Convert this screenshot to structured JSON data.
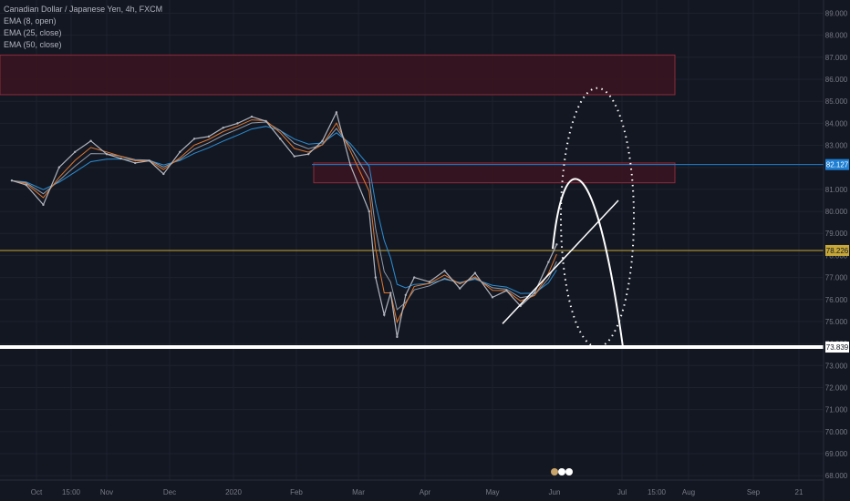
{
  "legend": {
    "symbol": "Canadian Dollar / Japanese Yen, 4h, FXCM",
    "indicators": [
      "EMA (8, open)",
      "EMA (25, close)",
      "EMA (50, close)"
    ]
  },
  "colors": {
    "background": "#131722",
    "price": "#b2b5be",
    "ema8": "#e0772d",
    "ema25": "#8f9aa8",
    "ema50": "#2a8fd6",
    "zone_fill": "#3a1420",
    "zone_border": "#8c2b3a",
    "current_line": "#1e7fd4",
    "hline_yellow": "#c6a737",
    "drawing": "#ffffff",
    "axis_text": "#787b86",
    "grid": "#1e222d"
  },
  "chart_data": {
    "type": "line",
    "title": "Canadian Dollar / Japanese Yen, 4h, FXCM",
    "xlabel": "",
    "ylabel": "",
    "x_ticks": [
      "Oct",
      "15:00",
      "Nov",
      "Dec",
      "2020",
      "Feb",
      "Mar",
      "Apr",
      "May",
      "Jun",
      "Jul",
      "15:00",
      "Aug",
      "Sep",
      "21"
    ],
    "y_ticks": [
      "89.000",
      "88.000",
      "87.000",
      "86.000",
      "85.000",
      "84.000",
      "83.000",
      "82.000",
      "81.000",
      "80.000",
      "79.000",
      "78.000",
      "77.000",
      "76.000",
      "75.000",
      "74.000",
      "73.000",
      "72.000",
      "71.000",
      "70.000",
      "69.000",
      "68.000"
    ],
    "ylim": [
      67.8,
      89.6
    ],
    "series": [
      {
        "name": "Canadian Dollar / Japanese Yen",
        "x": [
          "Sep 20",
          "Sep 27",
          "Oct 4",
          "Oct 11",
          "Oct 18",
          "Oct 25",
          "Nov 1",
          "Nov 8",
          "Nov 15",
          "Nov 22",
          "Nov 29",
          "Dec 6",
          "Dec 13",
          "Dec 20",
          "Dec 27",
          "Jan 3",
          "Jan 10",
          "Jan 17",
          "Jan 24",
          "Jan 31",
          "Feb 7",
          "Feb 14",
          "Feb 21",
          "Feb 28",
          "Mar 6",
          "Mar 9",
          "Mar 13",
          "Mar 16",
          "Mar 19",
          "Mar 23",
          "Mar 27",
          "Apr 3",
          "Apr 10",
          "Apr 17",
          "Apr 24",
          "May 1",
          "May 8",
          "May 15",
          "May 22",
          "May 29",
          "Jun 2"
        ],
        "values": [
          81.4,
          81.2,
          80.3,
          82.0,
          82.7,
          83.2,
          82.6,
          82.4,
          82.2,
          82.3,
          81.7,
          82.7,
          83.3,
          83.4,
          83.8,
          84.0,
          84.3,
          84.1,
          83.3,
          82.5,
          82.6,
          83.2,
          84.5,
          82.1,
          80.0,
          77.0,
          75.3,
          76.3,
          74.3,
          76.2,
          77.0,
          76.8,
          77.3,
          76.5,
          77.2,
          76.1,
          76.4,
          75.7,
          76.3,
          77.7,
          78.5
        ]
      }
    ],
    "levels": {
      "current_price": "82.127",
      "marked_level": "78.226",
      "support": "73.839"
    },
    "zones": [
      {
        "from": 85.3,
        "to": 87.1
      },
      {
        "from": 81.3,
        "to": 82.2
      }
    ],
    "grid": true,
    "legend_position": "top-left"
  }
}
